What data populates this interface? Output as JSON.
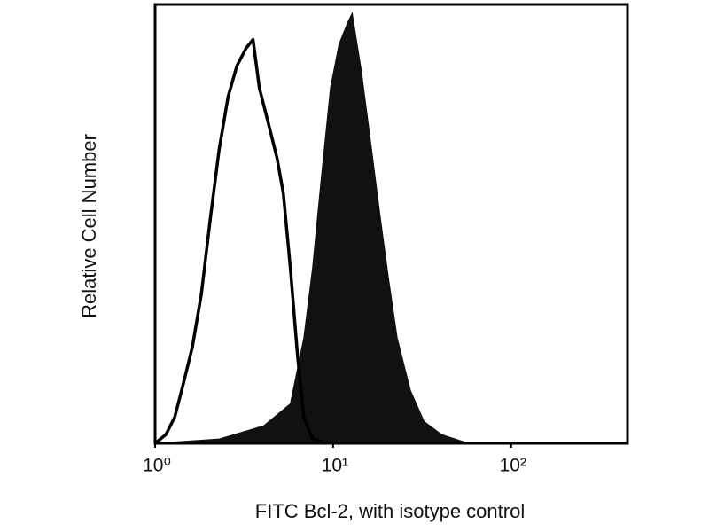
{
  "chart_data": {
    "type": "histogram-overlay",
    "x_label": "FITC Bcl-2, with isotype control",
    "y_label": "Relative Cell Number",
    "x_scale": "log",
    "xlim": [
      1,
      450
    ],
    "ylim": [
      0,
      100
    ],
    "xticks": [
      {
        "value": 1,
        "label": "10⁰"
      },
      {
        "value": 10,
        "label": "10¹"
      },
      {
        "value": 100,
        "label": "10²"
      }
    ],
    "series": [
      {
        "color": "#111111",
        "filled": true,
        "x": [
          1,
          2.29,
          4.07,
          5.75,
          6.84,
          7.67,
          8.61,
          9.66,
          10.8,
          12.1,
          12.8,
          14.4,
          16.2,
          18.2,
          20.4,
          22.9,
          27.2,
          32.4,
          40.7,
          57.5
        ],
        "values": [
          0,
          1,
          4,
          9,
          24,
          40,
          61,
          81,
          91,
          96,
          98,
          85,
          69,
          53,
          38,
          24,
          12,
          5,
          2,
          0
        ]
      },
      {
        "color": "#000000",
        "filled": false,
        "x": [
          1,
          1.15,
          1.29,
          1.45,
          1.62,
          1.82,
          2.04,
          2.29,
          2.57,
          2.88,
          3.24,
          3.55,
          3.85,
          4.32,
          4.84,
          5.25,
          5.75,
          6.31,
          6.84,
          7.67,
          9.12
        ],
        "values": [
          0,
          2,
          6,
          14,
          22,
          34,
          51,
          67,
          79,
          86,
          90,
          92,
          81,
          73,
          65,
          57,
          40,
          20,
          6,
          1,
          0
        ]
      }
    ]
  }
}
